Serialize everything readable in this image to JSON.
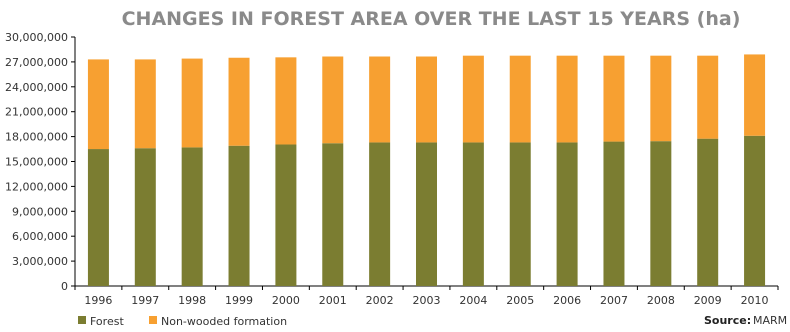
{
  "chart_data": {
    "type": "bar",
    "stacked": true,
    "title": "CHANGES IN FOREST AREA OVER THE LAST 15 YEARS (ha)",
    "categories": [
      "1996",
      "1997",
      "1998",
      "1999",
      "2000",
      "2001",
      "2002",
      "2003",
      "2004",
      "2005",
      "2006",
      "2007",
      "2008",
      "2009",
      "2010"
    ],
    "series": [
      {
        "name": "Forest",
        "color": "#7b7d31",
        "values": [
          16500000,
          16600000,
          16700000,
          16900000,
          17050000,
          17200000,
          17300000,
          17300000,
          17300000,
          17300000,
          17300000,
          17400000,
          17450000,
          17750000,
          18100000
        ]
      },
      {
        "name": "Non-wooded formation",
        "color": "#f7a031",
        "values": [
          10800000,
          10700000,
          10700000,
          10600000,
          10500000,
          10450000,
          10350000,
          10350000,
          10450000,
          10450000,
          10450000,
          10350000,
          10300000,
          10000000,
          9800000
        ]
      }
    ],
    "ylim": [
      0,
      30000000
    ],
    "yticks": [
      "0",
      "3,000,000",
      "6,000,000",
      "9,000,000",
      "12,000,000",
      "15,000,000",
      "18,000,000",
      "21,000,000",
      "24,000,000",
      "27,000,000",
      "30,000,000"
    ],
    "grid": false,
    "legend": "bottom-left",
    "title_color": "#8a8a8a"
  },
  "source": {
    "label": "Source:",
    "text": "MARM"
  }
}
